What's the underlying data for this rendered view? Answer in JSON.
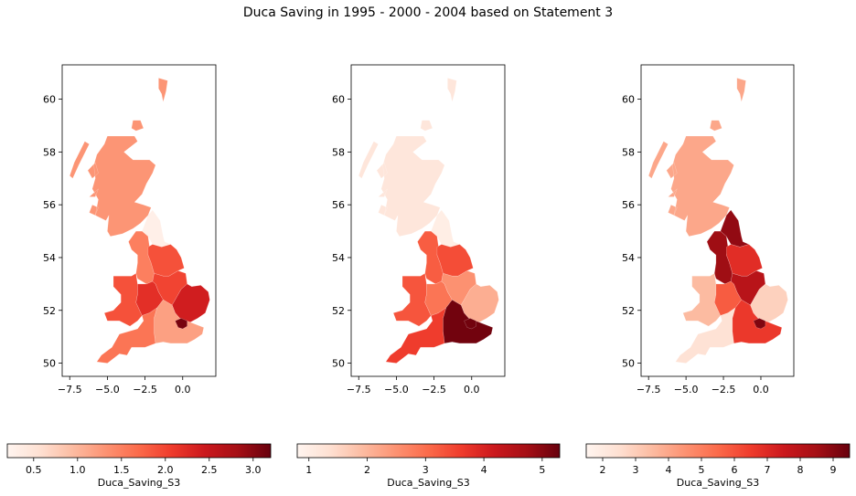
{
  "figure": {
    "title": "Duca Saving in 1995 - 2000 - 2004 based on Statement 3"
  },
  "chart_data": [
    {
      "type": "choropleth",
      "colormap": "Reds",
      "xlim": [
        -8.0,
        2.2
      ],
      "ylim": [
        49.5,
        61.3
      ],
      "xticks": [
        "−7.5",
        "−5.0",
        "−2.5",
        "0.0"
      ],
      "xtick_values": [
        -7.5,
        -5.0,
        -2.5,
        0.0
      ],
      "yticks": [
        "50",
        "52",
        "54",
        "56",
        "58",
        "60"
      ],
      "ytick_values": [
        50,
        52,
        54,
        56,
        58,
        60
      ],
      "colorbar": {
        "label": "Duca_Saving_S3",
        "range": [
          0.2,
          3.2
        ],
        "ticks": [
          "0.5",
          "1.0",
          "1.5",
          "2.0",
          "2.5",
          "3.0"
        ],
        "tick_values": [
          0.5,
          1.0,
          1.5,
          2.0,
          2.5,
          3.0
        ]
      },
      "regions": [
        {
          "name": "Scotland",
          "value": 1.3
        },
        {
          "name": "North East",
          "value": 0.3
        },
        {
          "name": "North West",
          "value": 1.5
        },
        {
          "name": "Yorkshire and the Humber",
          "value": 1.9
        },
        {
          "name": "Wales",
          "value": 1.9
        },
        {
          "name": "West Midlands",
          "value": 2.2
        },
        {
          "name": "East Midlands",
          "value": 2.0
        },
        {
          "name": "East of England",
          "value": 2.4
        },
        {
          "name": "South West",
          "value": 1.6
        },
        {
          "name": "South East",
          "value": 1.2
        },
        {
          "name": "London",
          "value": 3.1
        }
      ]
    },
    {
      "type": "choropleth",
      "colormap": "Reds",
      "xlim": [
        -8.0,
        2.2
      ],
      "ylim": [
        49.5,
        61.3
      ],
      "xticks": [
        "−7.5",
        "−5.0",
        "−2.5",
        "0.0"
      ],
      "xtick_values": [
        -7.5,
        -5.0,
        -2.5,
        0.0
      ],
      "yticks": [
        "50",
        "52",
        "54",
        "56",
        "58",
        "60"
      ],
      "ytick_values": [
        50,
        52,
        54,
        56,
        58,
        60
      ],
      "colorbar": {
        "label": "Duca_Saving_S3",
        "range": [
          0.8,
          5.3
        ],
        "ticks": [
          "1",
          "2",
          "3",
          "4",
          "5"
        ],
        "tick_values": [
          1,
          2,
          3,
          4,
          5
        ]
      },
      "regions": [
        {
          "name": "Scotland",
          "value": 1.2
        },
        {
          "name": "North East",
          "value": 1.0
        },
        {
          "name": "North West",
          "value": 3.2
        },
        {
          "name": "Yorkshire and the Humber",
          "value": 3.4
        },
        {
          "name": "Wales",
          "value": 3.3
        },
        {
          "name": "West Midlands",
          "value": 2.9
        },
        {
          "name": "East Midlands",
          "value": 2.5
        },
        {
          "name": "East of England",
          "value": 2.1
        },
        {
          "name": "South West",
          "value": 3.6
        },
        {
          "name": "South East",
          "value": 5.2
        },
        {
          "name": "London",
          "value": 5.2
        }
      ]
    },
    {
      "type": "choropleth",
      "colormap": "Reds",
      "xlim": [
        -8.0,
        2.2
      ],
      "ylim": [
        49.5,
        61.3
      ],
      "xticks": [
        "−7.5",
        "−5.0",
        "−2.5",
        "0.0"
      ],
      "xtick_values": [
        -7.5,
        -5.0,
        -2.5,
        0.0
      ],
      "yticks": [
        "50",
        "52",
        "54",
        "56",
        "58",
        "60"
      ],
      "ytick_values": [
        50,
        52,
        54,
        56,
        58,
        60
      ],
      "colorbar": {
        "label": "Duca_Saving_S3",
        "range": [
          1.5,
          9.5
        ],
        "ticks": [
          "2",
          "3",
          "4",
          "5",
          "6",
          "7",
          "8",
          "9"
        ],
        "tick_values": [
          2,
          3,
          4,
          5,
          6,
          7,
          8,
          9
        ]
      },
      "regions": [
        {
          "name": "Scotland",
          "value": 4.0
        },
        {
          "name": "North East",
          "value": 8.8
        },
        {
          "name": "North West",
          "value": 8.6
        },
        {
          "name": "Yorkshire and the Humber",
          "value": 6.9
        },
        {
          "name": "Wales",
          "value": 3.5
        },
        {
          "name": "West Midlands",
          "value": 5.8
        },
        {
          "name": "East Midlands",
          "value": 8.0
        },
        {
          "name": "East of England",
          "value": 2.9
        },
        {
          "name": "South West",
          "value": 2.4
        },
        {
          "name": "South East",
          "value": 6.6
        },
        {
          "name": "London",
          "value": 9.1
        }
      ]
    }
  ]
}
